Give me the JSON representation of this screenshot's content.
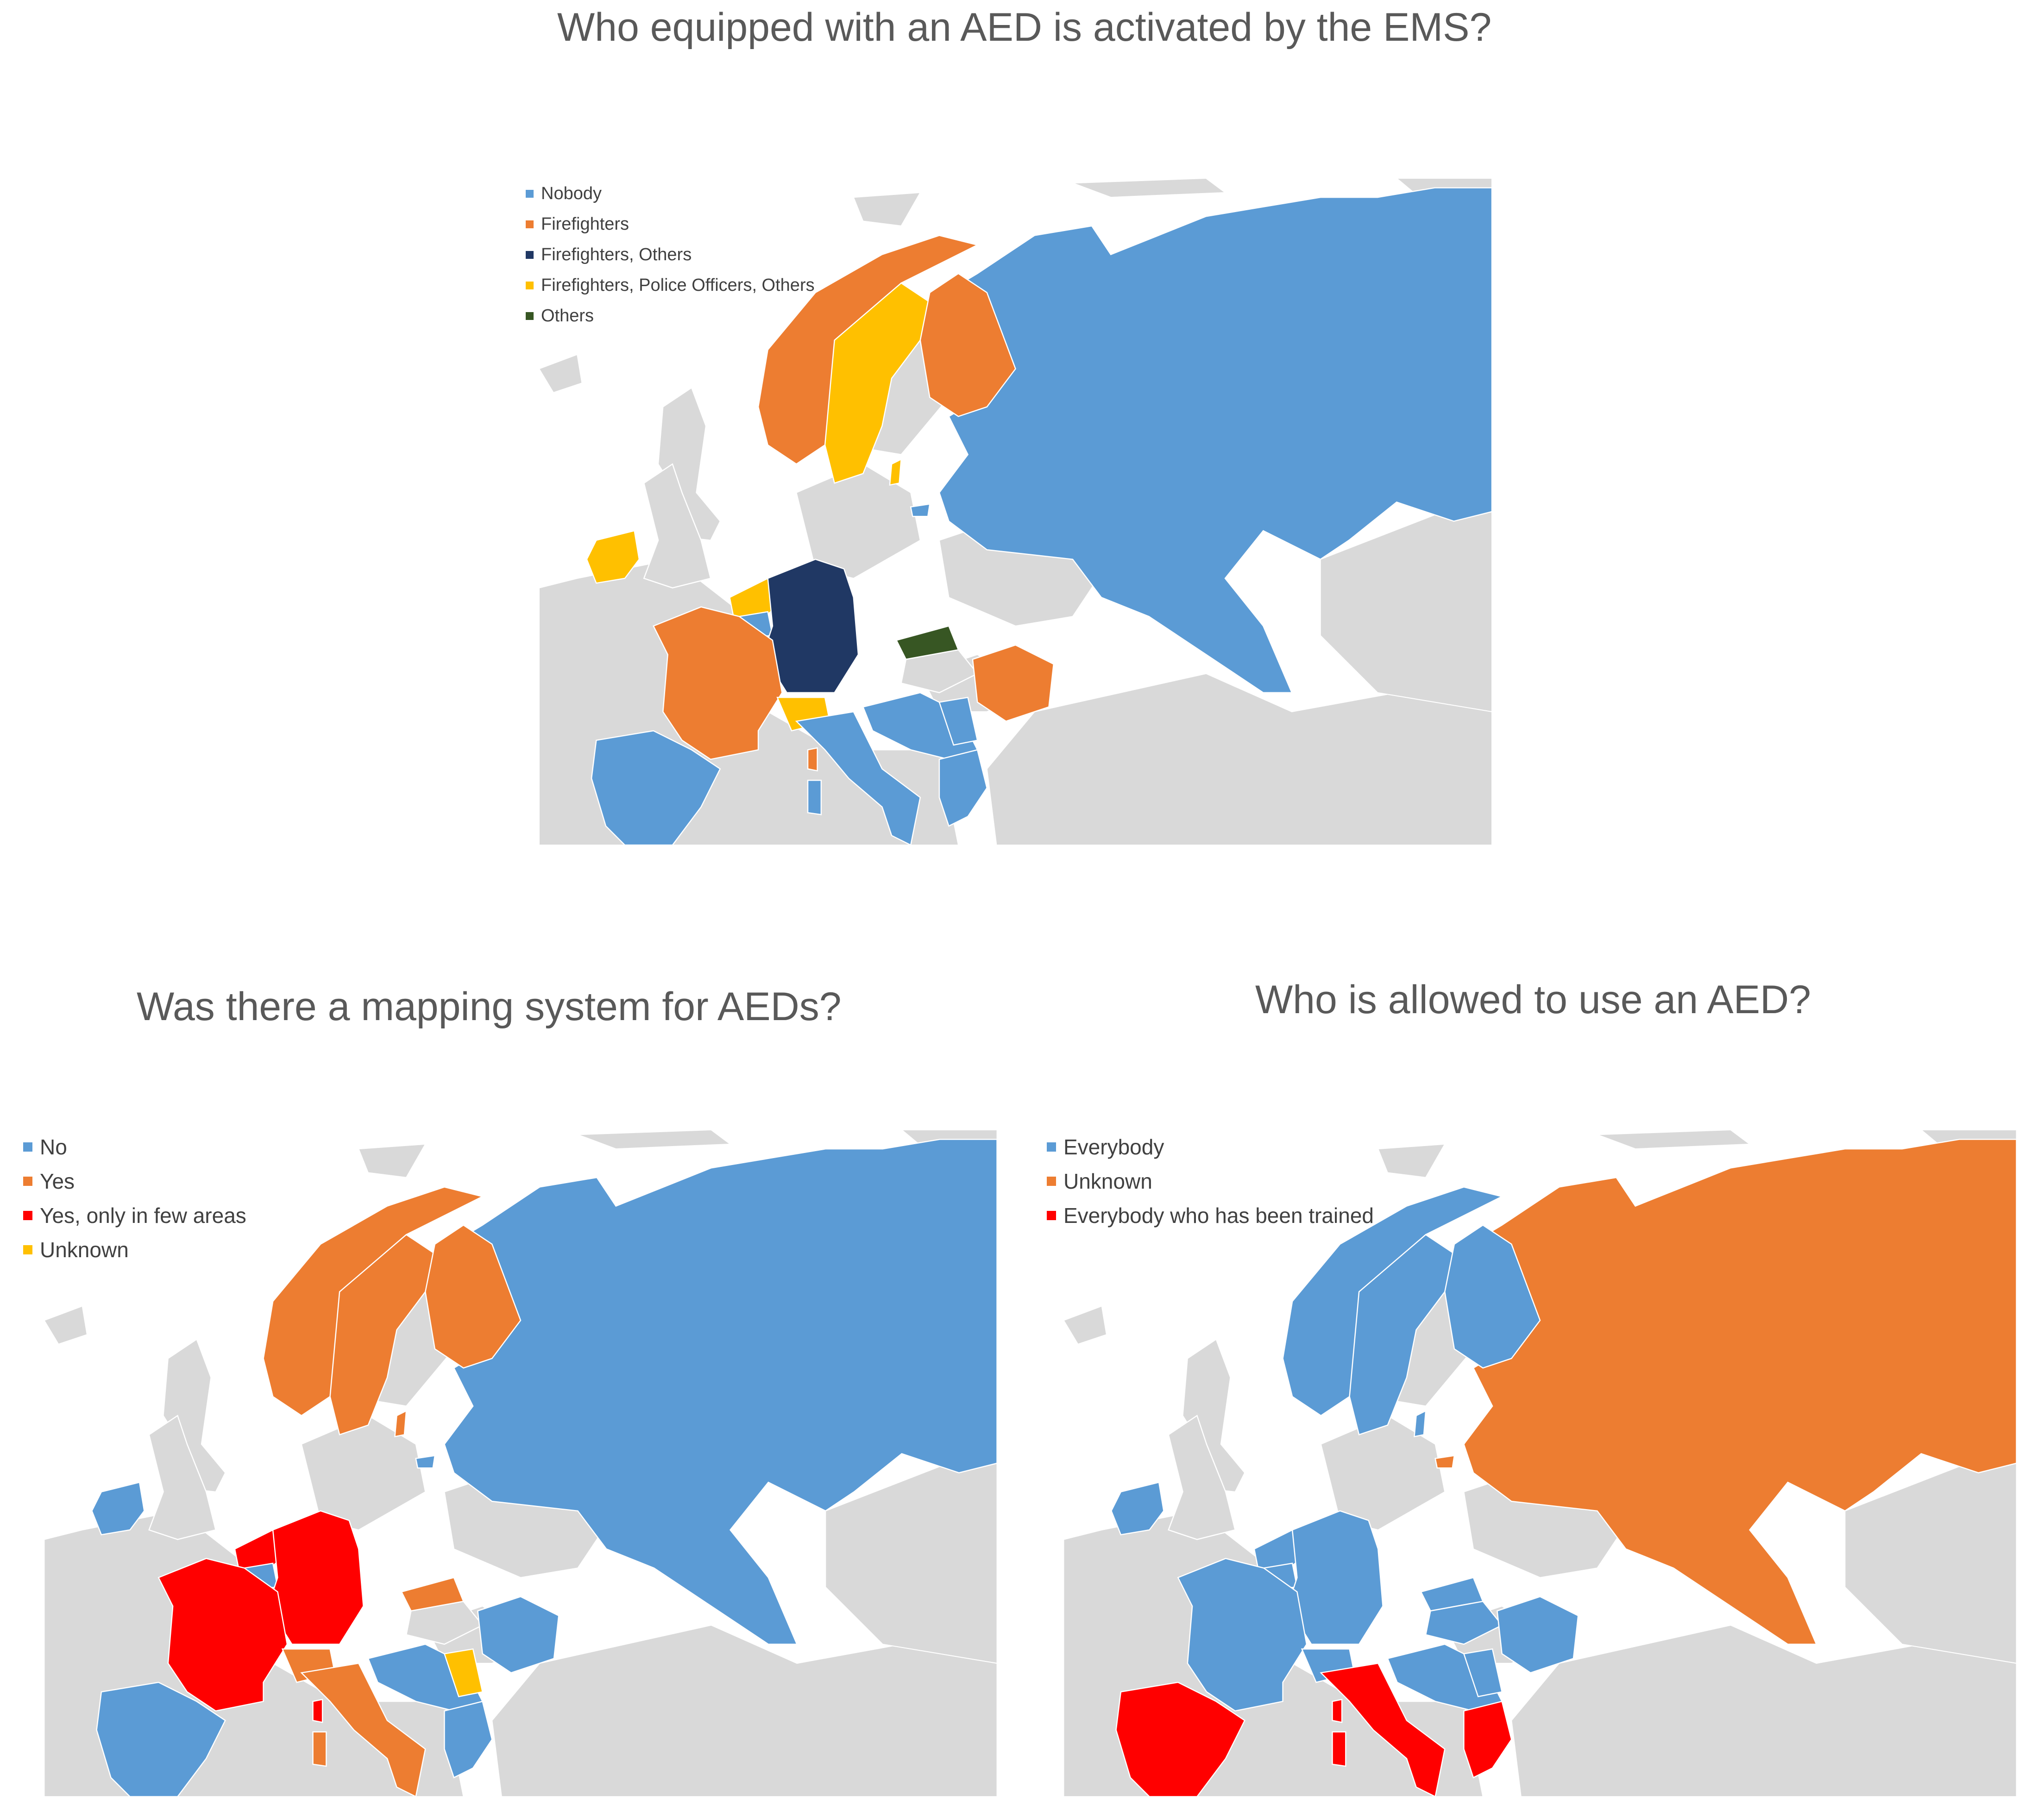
{
  "colors": {
    "land": "#d9d9d9",
    "border": "#ffffff",
    "blue": "#5b9bd5",
    "orange": "#ed7d31",
    "navy": "#203864",
    "yellow": "#ffc000",
    "green": "#375623",
    "red": "#ff0000"
  },
  "maps": [
    {
      "title": "Who equipped with an AED is activated by the EMS?",
      "legend": [
        {
          "label": "Nobody",
          "color": "#5b9bd5"
        },
        {
          "label": "Firefighters",
          "color": "#ed7d31"
        },
        {
          "label": "Firefighters, Others",
          "color": "#203864"
        },
        {
          "label": "Firefighters, Police Officers, Others",
          "color": "#ffc000"
        },
        {
          "label": "Others",
          "color": "#375623"
        }
      ],
      "regions": {
        "norway": "#ed7d31",
        "sweden": "#ffc000",
        "finland": "#ed7d31",
        "russia": "#5b9bd5",
        "ireland": "#ffc000",
        "uk": "#d9d9d9",
        "benelux": "#ffc000",
        "germany": "#203864",
        "france": "#ed7d31",
        "switzerland": "#ffc000",
        "slovakia": "#375623",
        "romania": "#ed7d31",
        "balkans": "#5b9bd5",
        "serbia": "#5b9bd5",
        "greece": "#5b9bd5",
        "italy": "#5b9bd5",
        "spain": "#5b9bd5",
        "corsica": "#ed7d31",
        "sardinia": "#5b9bd5",
        "lux": "#5b9bd5",
        "gotland": "#ffc000",
        "hungary": "#d9d9d9",
        "kaliningrad": "#5b9bd5"
      }
    },
    {
      "title": "Was there a mapping system for AEDs?",
      "legend": [
        {
          "label": "No",
          "color": "#5b9bd5"
        },
        {
          "label": "Yes",
          "color": "#ed7d31"
        },
        {
          "label": "Yes, only in few areas",
          "color": "#ff0000"
        },
        {
          "label": "Unknown",
          "color": "#ffc000"
        }
      ],
      "regions": {
        "norway": "#ed7d31",
        "sweden": "#ed7d31",
        "finland": "#ed7d31",
        "russia": "#5b9bd5",
        "ireland": "#5b9bd5",
        "uk": "#d9d9d9",
        "benelux": "#ff0000",
        "germany": "#ff0000",
        "france": "#ff0000",
        "switzerland": "#ed7d31",
        "slovakia": "#ed7d31",
        "romania": "#5b9bd5",
        "balkans": "#5b9bd5",
        "serbia": "#ffc000",
        "greece": "#5b9bd5",
        "italy": "#ed7d31",
        "spain": "#5b9bd5",
        "corsica": "#ff0000",
        "sardinia": "#ed7d31",
        "lux": "#5b9bd5",
        "gotland": "#ed7d31",
        "hungary": "#d9d9d9",
        "kaliningrad": "#5b9bd5"
      }
    },
    {
      "title": "Who is allowed to use an AED?",
      "legend": [
        {
          "label": "Everybody",
          "color": "#5b9bd5"
        },
        {
          "label": "Unknown",
          "color": "#ed7d31"
        },
        {
          "label": "Everybody who has been trained",
          "color": "#ff0000"
        }
      ],
      "regions": {
        "norway": "#5b9bd5",
        "sweden": "#5b9bd5",
        "finland": "#5b9bd5",
        "russia": "#ed7d31",
        "ireland": "#5b9bd5",
        "uk": "#d9d9d9",
        "benelux": "#5b9bd5",
        "germany": "#5b9bd5",
        "france": "#5b9bd5",
        "switzerland": "#5b9bd5",
        "slovakia": "#5b9bd5",
        "romania": "#5b9bd5",
        "balkans": "#5b9bd5",
        "serbia": "#5b9bd5",
        "greece": "#ff0000",
        "italy": "#ff0000",
        "spain": "#ff0000",
        "corsica": "#ff0000",
        "sardinia": "#ff0000",
        "lux": "#5b9bd5",
        "gotland": "#5b9bd5",
        "hungary": "#5b9bd5",
        "kaliningrad": "#ed7d31"
      }
    }
  ]
}
